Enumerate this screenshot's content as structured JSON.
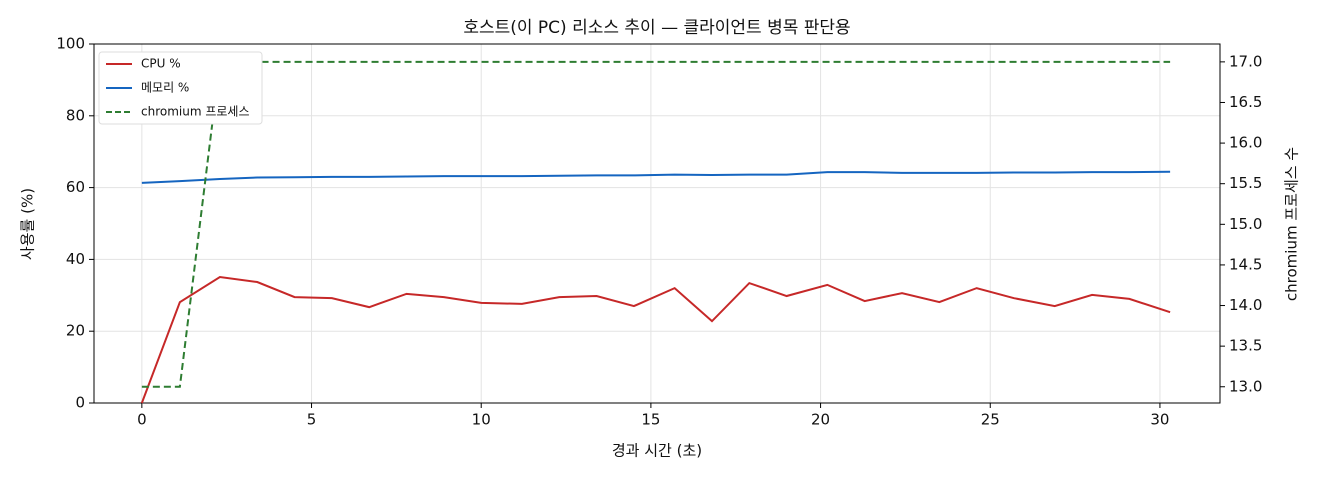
{
  "chart_data": {
    "type": "line",
    "title": "호스트(이 PC) 리소스 추이 — 클라이언트 병목 판단용",
    "x_label": "경과 시간 (초)",
    "y_label": "사용률 (%)",
    "y2_label": "chromium 프로세스 수",
    "x": [
      0,
      1.12,
      2.3,
      3.4,
      4.5,
      5.6,
      6.7,
      7.8,
      8.9,
      10.0,
      11.2,
      12.3,
      13.4,
      14.5,
      15.7,
      16.8,
      17.9,
      19.0,
      20.2,
      21.3,
      22.4,
      23.5,
      24.6,
      25.7,
      26.9,
      28.0,
      29.1,
      30.3
    ],
    "series": [
      {
        "name": "CPU %",
        "color": "#c62828",
        "values": [
          0,
          28.1,
          35.1,
          33.7,
          29.5,
          29.2,
          26.7,
          30.4,
          29.5,
          27.9,
          27.6,
          29.5,
          29.8,
          27.0,
          32.0,
          22.8,
          33.4,
          29.8,
          32.9,
          28.4,
          30.6,
          28.1,
          32.0,
          29.2,
          27.0,
          30.1,
          29.0,
          25.3
        ]
      },
      {
        "name": "메모리 %",
        "color": "#1565c0",
        "values": [
          61.3,
          61.8,
          62.4,
          62.8,
          62.9,
          63.0,
          63.0,
          63.1,
          63.2,
          63.2,
          63.2,
          63.3,
          63.4,
          63.4,
          63.6,
          63.5,
          63.6,
          63.6,
          64.3,
          64.3,
          64.1,
          64.1,
          64.1,
          64.2,
          64.2,
          64.3,
          64.3,
          64.4
        ]
      },
      {
        "name": "chromium 프로세스",
        "color": "#2e7d32",
        "axis": "y2",
        "linestyle": "dashed",
        "values": [
          13,
          13,
          17,
          17,
          17,
          17,
          17,
          17,
          17,
          17,
          17,
          17,
          17,
          17,
          17,
          17,
          17,
          17,
          17,
          17,
          17,
          17,
          17,
          17,
          17,
          17,
          17,
          17
        ]
      }
    ],
    "xlim": [
      -1.41,
      31.77
    ],
    "xticks": [
      0,
      5,
      10,
      15,
      20,
      25,
      30
    ],
    "ylim": [
      0,
      100
    ],
    "yticks": [
      0,
      20,
      40,
      60,
      80,
      100
    ],
    "y2lim": [
      12.8,
      17.22
    ],
    "y2ticks": [
      {
        "value": 13,
        "label": "13.0"
      },
      13.5,
      {
        "value": 14,
        "label": "14.0"
      },
      14.5,
      {
        "value": 15,
        "label": "15.0"
      },
      15.5,
      {
        "value": 16,
        "label": "16.0"
      },
      16.5,
      {
        "value": 17,
        "label": "17.0"
      }
    ],
    "grid": true,
    "legend": "upper-left"
  }
}
